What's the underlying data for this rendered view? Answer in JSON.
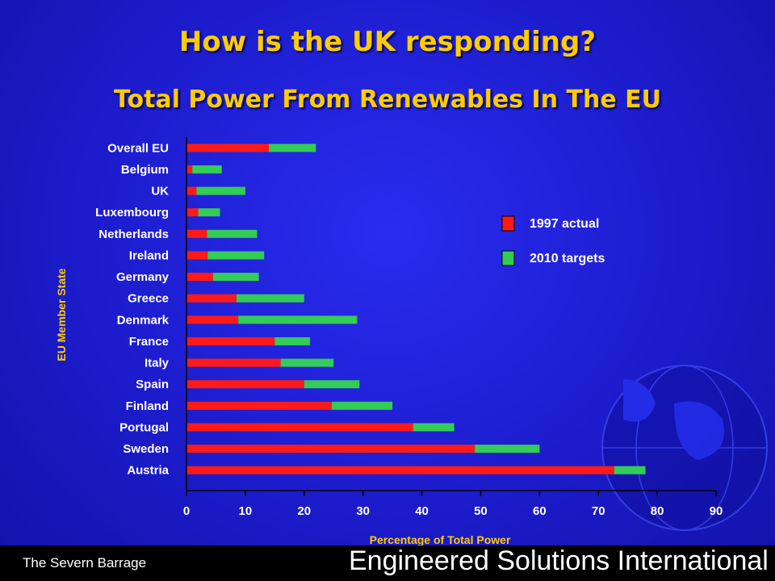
{
  "slide": {
    "title": "How is the UK responding?",
    "subtitle": "Total Power From Renewables In The EU",
    "footer_left": "The Severn Barrage",
    "footer_right": "Engineered Solutions International"
  },
  "colors": {
    "actual": "#ff1a1a",
    "target": "#33cc55",
    "title": "#ffcc00",
    "text": "#ffffff"
  },
  "chart_data": {
    "type": "bar",
    "orientation": "horizontal",
    "stacked": true,
    "categories": [
      "Overall EU",
      "Belgium",
      "UK",
      "Luxembourg",
      "Netherlands",
      "Ireland",
      "Germany",
      "Greece",
      "Denmark",
      "France",
      "Italy",
      "Spain",
      "Finland",
      "Portugal",
      "Sweden",
      "Austria"
    ],
    "series": [
      {
        "name": "1997 actual",
        "values": [
          14,
          1,
          1.7,
          2,
          3.5,
          3.6,
          4.5,
          8.5,
          8.8,
          15,
          16,
          20,
          24.7,
          38.5,
          49,
          72.7
        ]
      },
      {
        "name": "2010 targets",
        "values": [
          8,
          5,
          8.3,
          3.7,
          8.5,
          9.6,
          7.8,
          11.5,
          20.2,
          6,
          9,
          9.4,
          10.3,
          7,
          11,
          5.3
        ]
      }
    ],
    "xlabel": "Percentage of Total Power",
    "ylabel": "EU Member State",
    "xlim": [
      0,
      90
    ],
    "xticks": [
      0,
      10,
      20,
      30,
      40,
      50,
      60,
      70,
      80,
      90
    ],
    "legend_position": "right",
    "grid": false
  }
}
